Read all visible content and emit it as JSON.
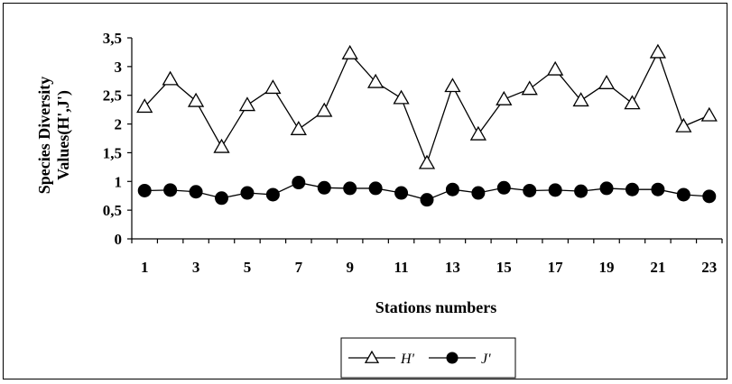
{
  "chart_data": {
    "type": "line",
    "x": [
      1,
      2,
      3,
      4,
      5,
      6,
      7,
      8,
      9,
      10,
      11,
      12,
      13,
      14,
      15,
      16,
      17,
      18,
      19,
      20,
      21,
      22,
      23
    ],
    "xticks": [
      "1",
      "3",
      "5",
      "7",
      "9",
      "11",
      "13",
      "15",
      "17",
      "19",
      "21",
      "23"
    ],
    "yticks": [
      "0",
      "0,5",
      "1",
      "1,5",
      "2",
      "2,5",
      "3",
      "3,5"
    ],
    "ylim": [
      0,
      3.5
    ],
    "xlabel": "Stations numbers",
    "ylabel_line1": "Species Diversity",
    "ylabel_line2": "Values(H',J')",
    "legend_position": "bottom",
    "series": [
      {
        "name": "H'",
        "marker": "triangle-open",
        "color": "#000000",
        "values": [
          2.3,
          2.78,
          2.4,
          1.6,
          2.33,
          2.63,
          1.91,
          2.23,
          3.23,
          2.73,
          2.45,
          1.32,
          2.66,
          1.82,
          2.43,
          2.61,
          2.95,
          2.41,
          2.71,
          2.36,
          3.25,
          1.96,
          2.15
        ]
      },
      {
        "name": "J'",
        "marker": "circle-filled",
        "color": "#000000",
        "values": [
          0.84,
          0.85,
          0.82,
          0.71,
          0.8,
          0.77,
          0.98,
          0.89,
          0.88,
          0.88,
          0.8,
          0.68,
          0.86,
          0.8,
          0.89,
          0.84,
          0.85,
          0.83,
          0.88,
          0.86,
          0.86,
          0.77,
          0.74
        ]
      }
    ]
  }
}
